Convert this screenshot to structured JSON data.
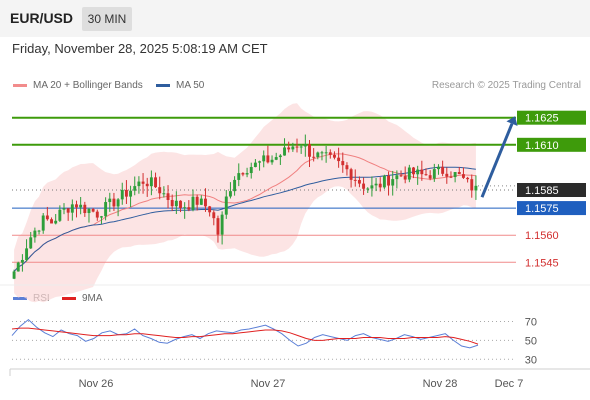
{
  "header": {
    "pair": "EUR/USD",
    "timeframe": "30 MIN"
  },
  "datetime": "Friday, November 28, 2025 5:08:19 AM CET",
  "legend": {
    "ma20": {
      "label": "MA 20 + Bollinger Bands",
      "color": "#f28c8c"
    },
    "ma50": {
      "label": "MA 50",
      "color": "#2f5d9e"
    },
    "credit": "Research © 2025 Trading Central"
  },
  "rsi_legend": {
    "rsi": {
      "label": "RSI",
      "color": "#5b7fd6"
    },
    "ma9": {
      "label": "9MA",
      "color": "#e02020"
    }
  },
  "colors": {
    "bull": "#2e9e3a",
    "bear": "#d22f2f",
    "green_level": "#3e9b0b",
    "red_level": "#f08a8a",
    "blue_level": "#1f5fbf",
    "band_fill": "#fbd9d9",
    "arrow": "#2e5d9e"
  },
  "chart_data": [
    {
      "type": "candlestick",
      "title": "",
      "ylim": [
        1.1533,
        1.1637
      ],
      "x_ticks": [
        "Nov 26",
        "Nov 27",
        "Nov 28",
        "Dec 7"
      ],
      "levels": [
        {
          "value": 1.1625,
          "label": "1.1625",
          "kind": "resistance"
        },
        {
          "value": 1.161,
          "label": "1.1610",
          "kind": "resistance"
        },
        {
          "value": 1.1585,
          "label": "1.1585",
          "kind": "last"
        },
        {
          "value": 1.1575,
          "label": "1.1575",
          "kind": "pivot"
        },
        {
          "value": 1.156,
          "label": "1.1560",
          "kind": "support"
        },
        {
          "value": 1.1545,
          "label": "1.1545",
          "kind": "support"
        }
      ],
      "scenario_arrow": {
        "from": 1.1581,
        "to": 1.1625,
        "direction": "up"
      },
      "close_series": [
        1.154,
        1.1548,
        1.1558,
        1.1564,
        1.1569,
        1.1567,
        1.1572,
        1.1575,
        1.1578,
        1.1575,
        1.1574,
        1.1572,
        1.1575,
        1.1578,
        1.1581,
        1.1584,
        1.1587,
        1.159,
        1.1589,
        1.1586,
        1.1582,
        1.1578,
        1.1576,
        1.1577,
        1.1579,
        1.1577,
        1.1574,
        1.156,
        1.158,
        1.1592,
        1.1596,
        1.1598,
        1.1599,
        1.1601,
        1.1602,
        1.1604,
        1.1607,
        1.161,
        1.1611,
        1.1606,
        1.1604,
        1.1603,
        1.1601,
        1.1599,
        1.1596,
        1.1592,
        1.1588,
        1.1586,
        1.1587,
        1.159,
        1.1592,
        1.1593,
        1.1594,
        1.1594,
        1.1593,
        1.1594,
        1.1595,
        1.1596,
        1.1594,
        1.1592,
        1.1588,
        1.1585
      ]
    },
    {
      "type": "line",
      "title": "RSI",
      "ylim": [
        25,
        80
      ],
      "y_ticks": [
        30,
        50,
        70
      ],
      "series": [
        {
          "name": "RSI",
          "values": [
            55,
            65,
            72,
            64,
            58,
            54,
            61,
            57,
            55,
            49,
            52,
            58,
            60,
            56,
            57,
            62,
            55,
            52,
            48,
            47,
            51,
            54,
            56,
            52,
            57,
            60,
            59,
            58,
            61,
            62,
            64,
            66,
            62,
            57,
            50,
            44,
            47,
            53,
            56,
            54,
            52,
            50,
            55,
            57,
            53,
            51,
            49,
            52,
            56,
            54,
            51,
            53,
            55,
            57,
            50,
            44,
            42,
            45
          ]
        },
        {
          "name": "9MA",
          "values": [
            62,
            63,
            63,
            62,
            61,
            60,
            59,
            58,
            57,
            56,
            55,
            55,
            55,
            56,
            56,
            57,
            57,
            56,
            55,
            54,
            53,
            53,
            54,
            54,
            55,
            56,
            57,
            57,
            58,
            59,
            60,
            61,
            61,
            60,
            58,
            55,
            52,
            50,
            50,
            51,
            52,
            52,
            52,
            53,
            53,
            53,
            52,
            52,
            52,
            53,
            53,
            53,
            53,
            54,
            53,
            51,
            49,
            46
          ]
        }
      ]
    }
  ]
}
